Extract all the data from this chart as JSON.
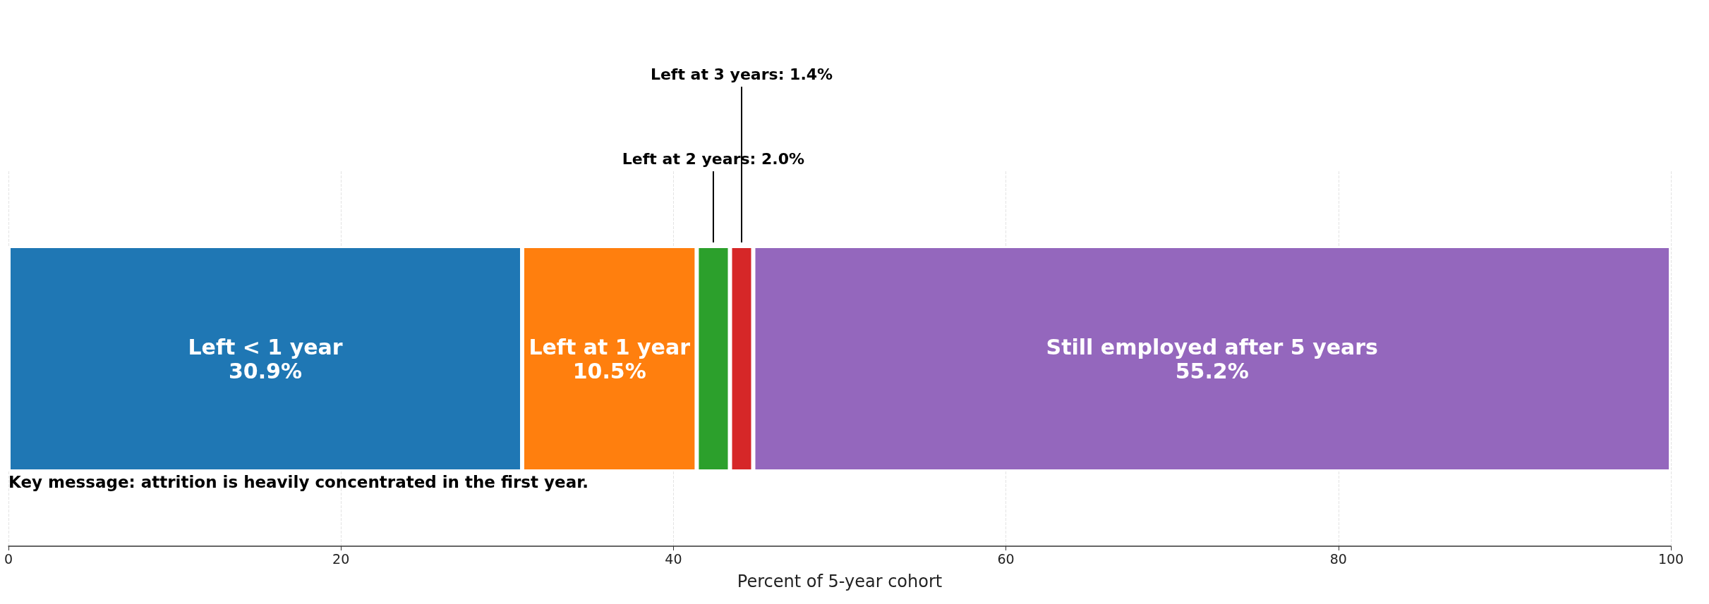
{
  "chart_data": {
    "type": "bar",
    "orientation": "horizontal",
    "stacked": true,
    "categories": [
      null
    ],
    "series": [
      {
        "name": "Left < 1 year",
        "color": "#1f77b4",
        "values": [
          30.9
        ],
        "value_labels": [
          "30.9%"
        ]
      },
      {
        "name": "Left at 1 year",
        "color": "#ff7f0e",
        "values": [
          10.5
        ],
        "value_labels": [
          "10.5%"
        ]
      },
      {
        "color": "#2ca02c",
        "values": [
          2.0
        ],
        "value_labels": [
          "Left at 2 years: 2.0%"
        ]
      },
      {
        "color": "#d62728",
        "values": [
          1.4
        ],
        "value_labels": [
          "Left at 3 years: 1.4%"
        ]
      },
      {
        "name": "Still employed after 5 years",
        "color": "#9467bd",
        "values": [
          55.2
        ],
        "value_labels": [
          "55.2%"
        ]
      }
    ],
    "xlim": [
      0,
      100
    ],
    "xticks": [
      0,
      20,
      40,
      60,
      80,
      100
    ],
    "xlabel": "Percent of 5-year cohort",
    "grid": "x",
    "legend": false,
    "annotations": [
      "Key message: attrition is heavily concentrated in the first year."
    ]
  }
}
